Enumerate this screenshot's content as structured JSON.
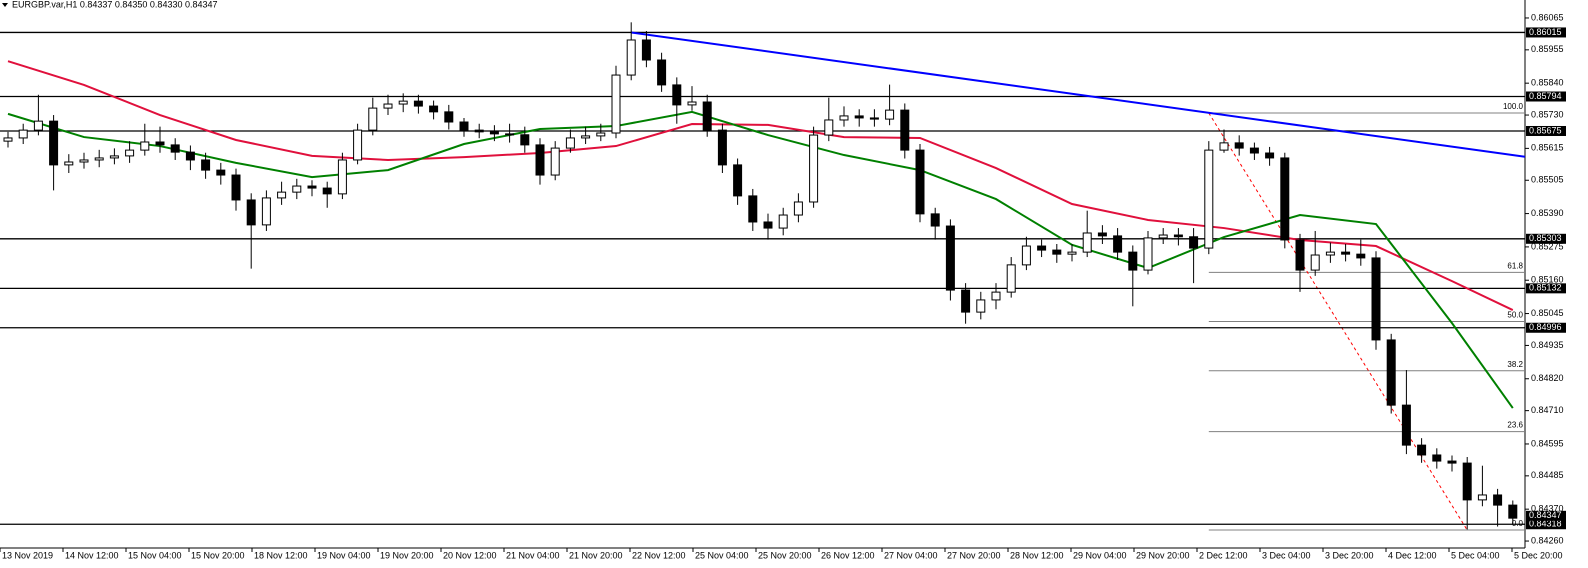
{
  "chart_data": {
    "type": "candlestick",
    "title": "EURGBP.var,H1  0.84337 0.84350 0.84330 0.84347",
    "candles": {
      "open": [
        0.8564,
        0.85651,
        0.85678,
        0.85709,
        0.85558,
        0.85568,
        0.85575,
        0.85582,
        0.85589,
        0.85609,
        0.85637,
        0.85627,
        0.85602,
        0.85575,
        0.8554,
        0.85523,
        0.85437,
        0.85351,
        0.85444,
        0.85464,
        0.85485,
        0.85478,
        0.85458,
        0.85575,
        0.85678,
        0.85754,
        0.85768,
        0.85778,
        0.85761,
        0.85741,
        0.85706,
        0.85678,
        0.85672,
        0.85665,
        0.85662,
        0.85627,
        0.85523,
        0.85616,
        0.85651,
        0.85658,
        0.85668,
        0.85868,
        0.85989,
        0.8592,
        0.85834,
        0.85765,
        0.85775,
        0.85678,
        0.85558,
        0.85451,
        0.85361,
        0.8534,
        0.85385,
        0.8543,
        0.85661,
        0.85713,
        0.85727,
        0.8572,
        0.85716,
        0.85747,
        0.85609,
        0.85389,
        0.85347,
        0.85126,
        0.8505,
        0.85092,
        0.85119,
        0.85213,
        0.85278,
        0.85264,
        0.8525,
        0.85257,
        0.85323,
        0.85313,
        0.85257,
        0.85195,
        0.85306,
        0.85316,
        0.8531,
        0.85271,
        0.85609,
        0.85634,
        0.85616,
        0.85599,
        0.85582,
        0.85299,
        0.85195,
        0.85247,
        0.85257,
        0.8525,
        0.85237,
        0.84954,
        0.84729,
        0.84591,
        0.84557,
        0.84536,
        0.84529,
        0.84402,
        0.84419,
        0.84384
      ],
      "high": [
        0.85672,
        0.857,
        0.858,
        0.8573,
        0.85595,
        0.856,
        0.8561,
        0.85615,
        0.8564,
        0.857,
        0.8569,
        0.8565,
        0.85625,
        0.856,
        0.85565,
        0.85545,
        0.8546,
        0.8547,
        0.855,
        0.8551,
        0.85505,
        0.855,
        0.856,
        0.857,
        0.8579,
        0.858,
        0.85805,
        0.858,
        0.8578,
        0.85765,
        0.8572,
        0.857,
        0.85695,
        0.857,
        0.8569,
        0.8565,
        0.8564,
        0.8568,
        0.8569,
        0.857,
        0.859,
        0.8605,
        0.8602,
        0.85945,
        0.8586,
        0.8583,
        0.858,
        0.857,
        0.8558,
        0.85475,
        0.8539,
        0.8541,
        0.8546,
        0.8569,
        0.8579,
        0.8576,
        0.8575,
        0.8575,
        0.85835,
        0.8577,
        0.8563,
        0.8541,
        0.8537,
        0.8515,
        0.8512,
        0.8515,
        0.8524,
        0.8531,
        0.853,
        0.85285,
        0.85285,
        0.854,
        0.8535,
        0.8534,
        0.8528,
        0.8533,
        0.8534,
        0.8534,
        0.8534,
        0.8564,
        0.8568,
        0.8566,
        0.85635,
        0.8562,
        0.856,
        0.8532,
        0.8533,
        0.8529,
        0.85285,
        0.853,
        0.8526,
        0.84975,
        0.8485,
        0.84615,
        0.8458,
        0.84555,
        0.8455,
        0.8452,
        0.8444,
        0.844
      ],
      "low": [
        0.85618,
        0.8563,
        0.8566,
        0.8547,
        0.8553,
        0.85545,
        0.8555,
        0.8556,
        0.85565,
        0.8559,
        0.856,
        0.85575,
        0.8554,
        0.8551,
        0.8549,
        0.854,
        0.852,
        0.8533,
        0.8542,
        0.8544,
        0.8545,
        0.8541,
        0.8544,
        0.8556,
        0.8566,
        0.8573,
        0.8574,
        0.85735,
        0.85715,
        0.8568,
        0.85655,
        0.8565,
        0.8564,
        0.85635,
        0.856,
        0.8549,
        0.85505,
        0.856,
        0.8563,
        0.8564,
        0.8565,
        0.8585,
        0.85895,
        0.8581,
        0.857,
        0.85745,
        0.85655,
        0.8553,
        0.8542,
        0.8533,
        0.853,
        0.85315,
        0.8536,
        0.8541,
        0.8564,
        0.8569,
        0.8569,
        0.8569,
        0.85695,
        0.8558,
        0.8536,
        0.853,
        0.8509,
        0.8501,
        0.85025,
        0.8506,
        0.851,
        0.85195,
        0.8524,
        0.8522,
        0.85225,
        0.8524,
        0.85285,
        0.8523,
        0.8507,
        0.8518,
        0.85285,
        0.8528,
        0.8515,
        0.8525,
        0.856,
        0.8559,
        0.85575,
        0.85555,
        0.8527,
        0.8512,
        0.85175,
        0.8522,
        0.85225,
        0.8521,
        0.8492,
        0.847,
        0.8456,
        0.8453,
        0.8451,
        0.845,
        0.843,
        0.8438,
        0.8431,
        0.84318
      ],
      "close": [
        0.85651,
        0.85678,
        0.85709,
        0.85558,
        0.85568,
        0.85575,
        0.85582,
        0.85589,
        0.85609,
        0.85637,
        0.85627,
        0.85602,
        0.85575,
        0.8554,
        0.85523,
        0.85437,
        0.85351,
        0.85444,
        0.85464,
        0.85485,
        0.85478,
        0.85458,
        0.85575,
        0.85678,
        0.85754,
        0.85768,
        0.85778,
        0.85761,
        0.85741,
        0.85706,
        0.85678,
        0.85672,
        0.85665,
        0.85662,
        0.85627,
        0.85523,
        0.85616,
        0.85651,
        0.85658,
        0.85668,
        0.85868,
        0.85989,
        0.8592,
        0.85834,
        0.85765,
        0.85775,
        0.85678,
        0.85558,
        0.85451,
        0.85361,
        0.8534,
        0.85385,
        0.8543,
        0.85661,
        0.85713,
        0.85727,
        0.8572,
        0.85716,
        0.85747,
        0.85609,
        0.85389,
        0.85347,
        0.85126,
        0.8505,
        0.85092,
        0.85119,
        0.85213,
        0.85278,
        0.85264,
        0.8525,
        0.85257,
        0.85323,
        0.85313,
        0.85257,
        0.85195,
        0.85306,
        0.85316,
        0.8531,
        0.85271,
        0.85609,
        0.85634,
        0.85616,
        0.85599,
        0.85582,
        0.85299,
        0.85195,
        0.85247,
        0.85257,
        0.8525,
        0.85237,
        0.84954,
        0.84729,
        0.84591,
        0.84557,
        0.84536,
        0.84529,
        0.84402,
        0.84419,
        0.84384,
        0.84339
      ]
    },
    "series": [
      {
        "color": "#e0103c",
        "x": [
          0,
          5,
          10,
          15,
          20,
          25,
          30,
          35,
          40,
          45,
          50,
          55,
          60,
          65,
          70,
          75,
          80,
          85,
          90,
          95,
          99
        ],
        "values": [
          0.85916,
          0.85834,
          0.8573,
          0.85644,
          0.85589,
          0.85575,
          0.85585,
          0.85599,
          0.85623,
          0.85699,
          0.85696,
          0.85654,
          0.85651,
          0.85547,
          0.85423,
          0.85368,
          0.8534,
          0.85299,
          0.85278,
          0.85157,
          0.85057
        ]
      },
      {
        "color": "#008000",
        "x": [
          0,
          5,
          10,
          15,
          20,
          25,
          30,
          35,
          40,
          45,
          50,
          55,
          60,
          65,
          70,
          75,
          80,
          85,
          90,
          95,
          99
        ],
        "values": [
          0.85734,
          0.85654,
          0.85623,
          0.85565,
          0.85516,
          0.8554,
          0.8563,
          0.85682,
          0.85692,
          0.85741,
          0.85661,
          0.85592,
          0.8554,
          0.8544,
          0.85282,
          0.85202,
          0.85309,
          0.85385,
          0.85354,
          0.85012,
          0.84719
        ]
      }
    ],
    "xlabels": [
      "13 Nov 2019",
      "14 Nov 12:00",
      "15 Nov 04:00",
      "15 Nov 20:00",
      "18 Nov 12:00",
      "19 Nov 04:00",
      "19 Nov 20:00",
      "20 Nov 12:00",
      "21 Nov 04:00",
      "21 Nov 20:00",
      "22 Nov 12:00",
      "25 Nov 04:00",
      "25 Nov 20:00",
      "26 Nov 12:00",
      "27 Nov 04:00",
      "27 Nov 20:00",
      "28 Nov 12:00",
      "29 Nov 04:00",
      "29 Nov 20:00",
      "2 Dec 12:00",
      "3 Dec 04:00",
      "3 Dec 20:00",
      "4 Dec 12:00",
      "5 Dec 04:00",
      "5 Dec 20:00"
    ],
    "ylim": [
      0.84236,
      0.86127
    ],
    "yticks": [
      0.86065,
      0.85955,
      {
        "value": 0.8584,
        "label": "0.85840"
      },
      {
        "value": 0.8573,
        "label": "0.85730"
      },
      0.85615,
      0.85505,
      {
        "value": 0.8539,
        "label": "0.85390"
      },
      0.85275,
      {
        "value": 0.8516,
        "label": "0.85160"
      },
      0.85045,
      0.84935,
      {
        "value": 0.8482,
        "label": "0.84820"
      },
      {
        "value": 0.8471,
        "label": "0.84710"
      },
      0.84595,
      0.84485,
      {
        "value": 0.8437,
        "label": "0.84370"
      },
      {
        "value": 0.8426,
        "label": "0.84260"
      }
    ],
    "levels": [
      0.86015,
      0.85794,
      0.85675,
      0.85303,
      0.85132,
      0.84996,
      0.84318
    ],
    "current_price": 0.84347,
    "trendline": {
      "color": "#0000ff",
      "x": [
        41,
        99.8
      ],
      "y": [
        0.86015,
        0.85586
      ]
    },
    "fibo": {
      "x": [
        79,
        96
      ],
      "high": 0.85737,
      "low": 0.84298,
      "color": "#808080",
      "diagonal_color": "#ff0000",
      "levels": [
        {
          "value": 100,
          "label": "100.0"
        },
        61.8,
        {
          "value": 50,
          "label": "50.0"
        },
        38.2,
        23.6,
        {
          "value": 0,
          "label": "0.0"
        }
      ]
    }
  }
}
